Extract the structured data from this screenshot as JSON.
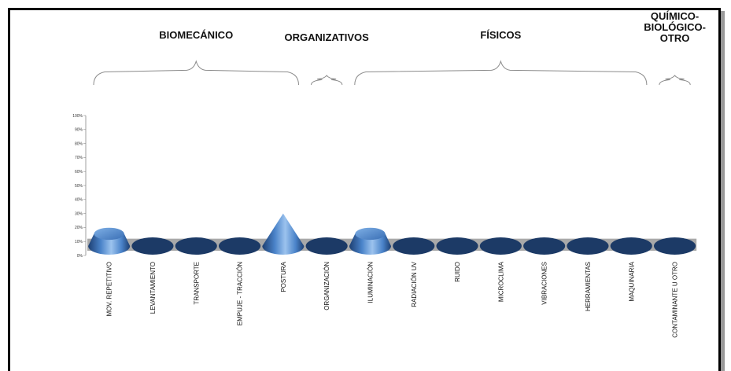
{
  "chart_data": {
    "type": "bar",
    "shape": "cone",
    "categories": [
      "MOV. REPETITIVO",
      "LEVANTAMIENTO",
      "TRANSPORTE",
      "EMPUJE - TRACCIÓN",
      "POSTURA",
      "ORGANIZACIÓN",
      "ILUMINACIÓN",
      "RADIACIÓN UV",
      "RUIDO",
      "MICROCLIMA",
      "VIBRACIONES",
      "HERRAMIENTAS",
      "MAQUINARIA",
      "CONTAMINANTE U OTRO"
    ],
    "values": [
      20,
      0,
      0,
      0,
      30,
      0,
      20,
      0,
      0,
      0,
      0,
      0,
      0,
      0
    ],
    "ylim": [
      0,
      100
    ],
    "yticks": [
      "0%",
      "10%",
      "20%",
      "30%",
      "40%",
      "50%",
      "60%",
      "70%",
      "80%",
      "90%",
      "100%"
    ],
    "groups": [
      {
        "label": "BIOMECÁNICO",
        "from": 0,
        "to": 4
      },
      {
        "label": "ORGANIZATIVOS",
        "from": 5,
        "to": 5
      },
      {
        "label": "FÍSICOS",
        "from": 6,
        "to": 12
      },
      {
        "label": "QUÍMICO-\nBIOLÓGICO-\nOTRO",
        "from": 13,
        "to": 13
      }
    ],
    "colors": {
      "cone_light": "#9cc3ee",
      "cone_mid": "#4a83c9",
      "cone_dark": "#1d3f72",
      "ellipse": "#1c3a66",
      "floor": "#a9a9a9"
    }
  }
}
